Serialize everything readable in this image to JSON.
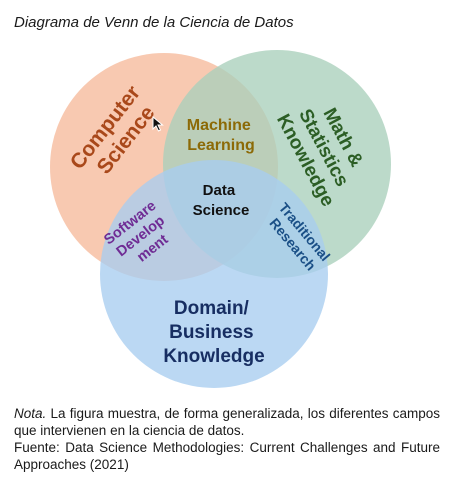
{
  "heading": "Diagrama de Venn de la Ciencia de Datos",
  "venn": {
    "circles": {
      "computer_science": {
        "label_lines": [
          "Computer",
          "Science"
        ],
        "fill": "#f6ba9b",
        "text_color": "#a9481a"
      },
      "math_statistics": {
        "label_lines": [
          "Math &",
          "Statistics",
          "Knowledge"
        ],
        "fill": "#a9cfbb",
        "text_color": "#2c5e25"
      },
      "domain_business": {
        "label_lines": [
          "Domain/",
          "Business",
          "Knowledge"
        ],
        "fill": "#a8cdef",
        "text_color": "#172e62"
      }
    },
    "intersections": {
      "machine_learning": {
        "label_lines": [
          "Machine",
          "Learning"
        ],
        "text_color": "#8c6a07"
      },
      "software_development": {
        "label_lines": [
          "Software",
          "Develop",
          "ment"
        ],
        "text_color": "#6f2c94"
      },
      "traditional_research": {
        "label_lines": [
          "Traditional",
          "Research"
        ],
        "text_color": "#1a4f86"
      },
      "data_science": {
        "label_lines": [
          "Data",
          "Science"
        ],
        "text_color": "#111111"
      }
    }
  },
  "footnote": {
    "note_label": "Nota.",
    "note_text": " La figura muestra, de forma generalizada, los diferentes campos que intervienen en la ciencia de datos.",
    "source_text": "Fuente: Data Science Methodologies: Current Challenges and Future Approaches (2021)"
  }
}
